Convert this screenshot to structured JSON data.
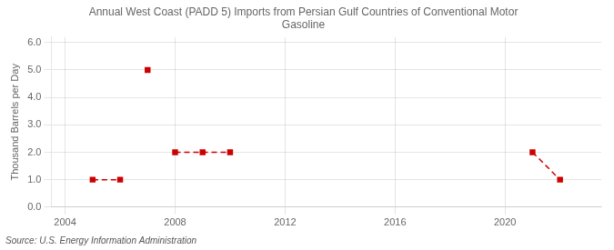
{
  "chart_data": {
    "type": "line",
    "title": "Annual West Coast (PADD 5) Imports from Persian Gulf Countries of Conventional Motor\nGasoline",
    "ylabel": "Thousand Barrels per Day",
    "source": "Source: U.S. Energy Information Administration",
    "series": [
      {
        "color": "#cc0000",
        "marker": "square",
        "line_style": "dashed",
        "x": [
          2005,
          2006
        ],
        "values": [
          1.0,
          1.0
        ]
      },
      {
        "color": "#cc0000",
        "marker": "square",
        "line_style": "dashed",
        "x": [
          2007
        ],
        "values": [
          5.0
        ]
      },
      {
        "color": "#cc0000",
        "marker": "square",
        "line_style": "dashed",
        "x": [
          2008,
          2009,
          2010
        ],
        "values": [
          2.0,
          2.0,
          2.0
        ]
      },
      {
        "color": "#cc0000",
        "marker": "square",
        "line_style": "dashed",
        "x": [
          2021,
          2022
        ],
        "values": [
          2.0,
          1.0
        ]
      }
    ],
    "xlim": [
      2003.5,
      2023.5
    ],
    "xticks": [
      2004,
      2008,
      2012,
      2016,
      2020
    ],
    "ylim": [
      0.0,
      6.2
    ],
    "yticks": [
      {
        "value": 0,
        "label": "0.0"
      },
      {
        "value": 1,
        "label": "1.0"
      },
      {
        "value": 2,
        "label": "2.0"
      },
      {
        "value": 3,
        "label": "3.0"
      },
      {
        "value": 4,
        "label": "4.0"
      },
      {
        "value": 5,
        "label": "5.0"
      },
      {
        "value": 6,
        "label": "6.0"
      }
    ],
    "grid": true,
    "legend": false
  }
}
